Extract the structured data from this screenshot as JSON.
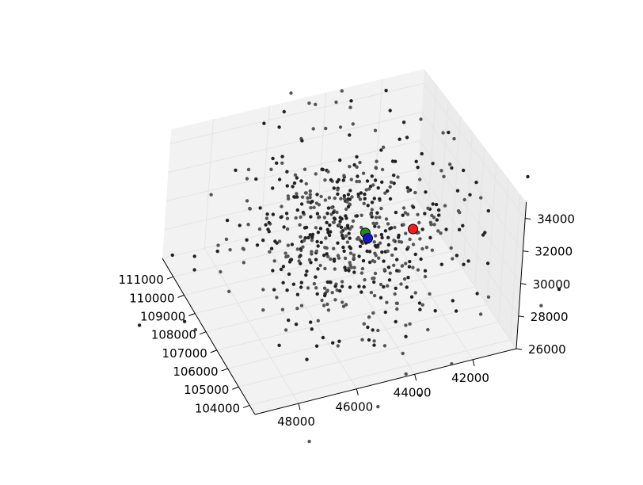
{
  "chart_data": {
    "type": "scatter",
    "projection": "3d",
    "title": "",
    "xlabel": "",
    "ylabel": "",
    "zlabel": "",
    "grid": true,
    "axes": {
      "x": {
        "ticks": [
          104000,
          105000,
          106000,
          107000,
          108000,
          109000,
          110000,
          111000
        ],
        "tick_labels": [
          "104000",
          "105000",
          "106000",
          "107000",
          "108000",
          "109000",
          "110000",
          "111000"
        ],
        "range": [
          103500,
          112000
        ]
      },
      "y": {
        "ticks": [
          42000,
          44000,
          46000,
          48000
        ],
        "tick_labels": [
          "42000",
          "44000",
          "46000",
          "48000"
        ],
        "range": [
          40500,
          49500
        ]
      },
      "z": {
        "ticks": [
          26000,
          28000,
          30000,
          32000,
          34000
        ],
        "tick_labels": [
          "26000",
          "28000",
          "30000",
          "32000",
          "34000"
        ],
        "range": [
          26000,
          35000
        ]
      }
    },
    "colors": {
      "points": "#222222",
      "pane": "#f2f2f2",
      "pane_dark": "#ebebeb",
      "grid": "#e4e4e4",
      "highlight_red": "#ff1a1a",
      "highlight_green": "#1e8a1e",
      "highlight_blue": "#1515d0"
    },
    "highlights": [
      {
        "color": "#ff1a1a",
        "x": 107300,
        "y": 42700,
        "z": 30400
      },
      {
        "color": "#1e8a1e",
        "x": 107700,
        "y": 44200,
        "z": 30400
      },
      {
        "color": "#1515d0",
        "x": 107700,
        "y": 44100,
        "z": 30000
      }
    ],
    "point_count": 620,
    "point_cloud_center": {
      "x": 107800,
      "y": 44600,
      "z": 30200
    },
    "point_cloud_spread": {
      "x": 2000,
      "y": 1800,
      "z": 2400
    }
  }
}
